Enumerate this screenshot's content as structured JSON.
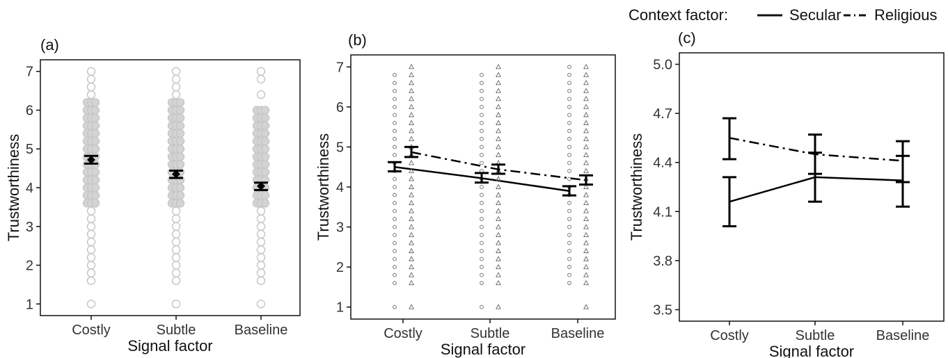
{
  "legend": {
    "title": "Context factor:",
    "items": [
      {
        "label": "Secular",
        "dash": "solid"
      },
      {
        "label": "Religious",
        "dash": "dashdot"
      }
    ],
    "position": "top-right"
  },
  "chart_data": [
    {
      "panel_label": "(a)",
      "type": "scatter",
      "xlabel": "Signal factor",
      "ylabel": "Trustworthiness",
      "categories": [
        "Costly",
        "Subtle",
        "Baseline"
      ],
      "ylim": [
        0.7,
        7.3
      ],
      "yticks": [
        1,
        2,
        3,
        4,
        5,
        6,
        7
      ],
      "grid": false,
      "point_color": "#c8c8c8",
      "raw_points": [
        {
          "category": "Costly",
          "values": [
            1.0,
            1.6,
            1.8,
            2.0,
            2.2,
            2.4,
            2.6,
            2.8,
            3.0,
            3.2,
            3.4,
            3.6,
            3.8,
            4.0,
            4.2,
            4.4,
            4.6,
            4.8,
            5.0,
            5.2,
            5.4,
            5.6,
            5.8,
            6.0,
            6.2,
            6.4,
            6.6,
            6.8,
            7.0
          ]
        },
        {
          "category": "Subtle",
          "values": [
            1.0,
            1.6,
            1.8,
            2.0,
            2.2,
            2.4,
            2.6,
            2.8,
            3.0,
            3.2,
            3.4,
            3.6,
            3.8,
            4.0,
            4.2,
            4.4,
            4.6,
            4.8,
            5.0,
            5.2,
            5.4,
            5.6,
            5.8,
            6.0,
            6.2,
            6.4,
            6.6,
            6.8,
            7.0
          ]
        },
        {
          "category": "Baseline",
          "values": [
            1.0,
            1.6,
            1.8,
            2.0,
            2.2,
            2.4,
            2.6,
            2.8,
            3.0,
            3.2,
            3.4,
            3.6,
            3.8,
            4.0,
            4.2,
            4.4,
            4.6,
            4.8,
            5.0,
            5.2,
            5.4,
            5.6,
            5.8,
            6.0,
            6.4,
            6.8,
            7.0
          ]
        }
      ],
      "means": [
        {
          "category": "Costly",
          "mean": 4.72,
          "lower": 4.62,
          "upper": 4.82
        },
        {
          "category": "Subtle",
          "mean": 4.35,
          "lower": 4.25,
          "upper": 4.44
        },
        {
          "category": "Baseline",
          "mean": 4.04,
          "lower": 3.94,
          "upper": 4.13
        }
      ]
    },
    {
      "panel_label": "(b)",
      "type": "line",
      "xlabel": "Signal factor",
      "ylabel": "Trustworthiness",
      "categories": [
        "Costly",
        "Subtle",
        "Baseline"
      ],
      "ylim": [
        0.7,
        7.3
      ],
      "yticks": [
        1,
        2,
        3,
        4,
        5,
        6,
        7
      ],
      "grid": false,
      "series": [
        {
          "name": "Secular",
          "marker": "circle",
          "dash": "solid",
          "values": [
            4.5,
            4.22,
            3.9
          ],
          "lower": [
            4.39,
            4.11,
            3.79
          ],
          "upper": [
            4.62,
            4.35,
            4.02
          ],
          "raw_points": [
            [
              1.0,
              1.6,
              1.8,
              2.0,
              2.2,
              2.4,
              2.6,
              2.8,
              3.0,
              3.2,
              3.4,
              3.6,
              3.8,
              4.0,
              4.2,
              4.4,
              4.6,
              4.8,
              5.0,
              5.2,
              5.4,
              5.6,
              5.8,
              6.0,
              6.2,
              6.4,
              6.6,
              6.8
            ],
            [
              1.0,
              1.6,
              1.8,
              2.0,
              2.2,
              2.4,
              2.6,
              2.8,
              3.0,
              3.2,
              3.4,
              3.6,
              3.8,
              4.0,
              4.2,
              4.4,
              4.6,
              4.8,
              5.0,
              5.2,
              5.4,
              5.6,
              5.8,
              6.0,
              6.2,
              6.4,
              6.6,
              6.8
            ],
            [
              1.6,
              1.8,
              2.0,
              2.2,
              2.4,
              2.6,
              2.8,
              3.0,
              3.2,
              3.4,
              3.6,
              3.8,
              4.0,
              4.2,
              4.4,
              4.6,
              4.8,
              5.0,
              5.2,
              5.4,
              5.6,
              5.8,
              6.0,
              6.2,
              6.4,
              6.6,
              6.8,
              7.0
            ]
          ]
        },
        {
          "name": "Religious",
          "marker": "triangle",
          "dash": "dashdot",
          "values": [
            4.87,
            4.44,
            4.17
          ],
          "lower": [
            4.75,
            4.33,
            4.06
          ],
          "upper": [
            5.0,
            4.56,
            4.29
          ],
          "raw_points": [
            [
              1.0,
              1.6,
              1.8,
              2.0,
              2.2,
              2.4,
              2.6,
              2.8,
              3.0,
              3.2,
              3.4,
              3.6,
              3.8,
              4.0,
              4.2,
              4.4,
              4.6,
              4.8,
              5.0,
              5.2,
              5.4,
              5.6,
              5.8,
              6.0,
              6.2,
              6.4,
              6.6,
              6.8,
              7.0
            ],
            [
              1.0,
              1.6,
              1.8,
              2.0,
              2.2,
              2.4,
              2.6,
              2.8,
              3.0,
              3.2,
              3.4,
              3.6,
              3.8,
              4.0,
              4.2,
              4.4,
              4.6,
              4.8,
              5.0,
              5.2,
              5.4,
              5.6,
              5.8,
              6.0,
              6.2,
              6.4,
              6.6,
              6.8,
              7.0
            ],
            [
              1.0,
              1.6,
              1.8,
              2.0,
              2.2,
              2.4,
              2.6,
              2.8,
              3.0,
              3.2,
              3.4,
              3.6,
              3.8,
              4.0,
              4.2,
              4.4,
              4.6,
              4.8,
              5.0,
              5.2,
              5.4,
              5.6,
              5.8,
              6.0,
              6.2,
              6.4,
              6.6,
              6.8,
              7.0
            ]
          ]
        }
      ]
    },
    {
      "panel_label": "(c)",
      "type": "line",
      "xlabel": "Signal factor",
      "ylabel": "Trustworthiness",
      "categories": [
        "Costly",
        "Subtle",
        "Baseline"
      ],
      "ylim": [
        3.43,
        5.07
      ],
      "yticks": [
        3.5,
        3.8,
        4.1,
        4.4,
        4.7,
        5.0
      ],
      "ytick_labels": [
        "3.5",
        "3.8",
        "4.1",
        "4.4",
        "4.7",
        "5.0"
      ],
      "grid": false,
      "series": [
        {
          "name": "Secular",
          "dash": "solid",
          "values": [
            4.16,
            4.31,
            4.29
          ],
          "lower": [
            4.01,
            4.16,
            4.13
          ],
          "upper": [
            4.31,
            4.46,
            4.44
          ]
        },
        {
          "name": "Religious",
          "dash": "dashdot",
          "values": [
            4.55,
            4.45,
            4.41
          ],
          "lower": [
            4.42,
            4.33,
            4.28
          ],
          "upper": [
            4.67,
            4.57,
            4.53
          ]
        }
      ]
    }
  ]
}
